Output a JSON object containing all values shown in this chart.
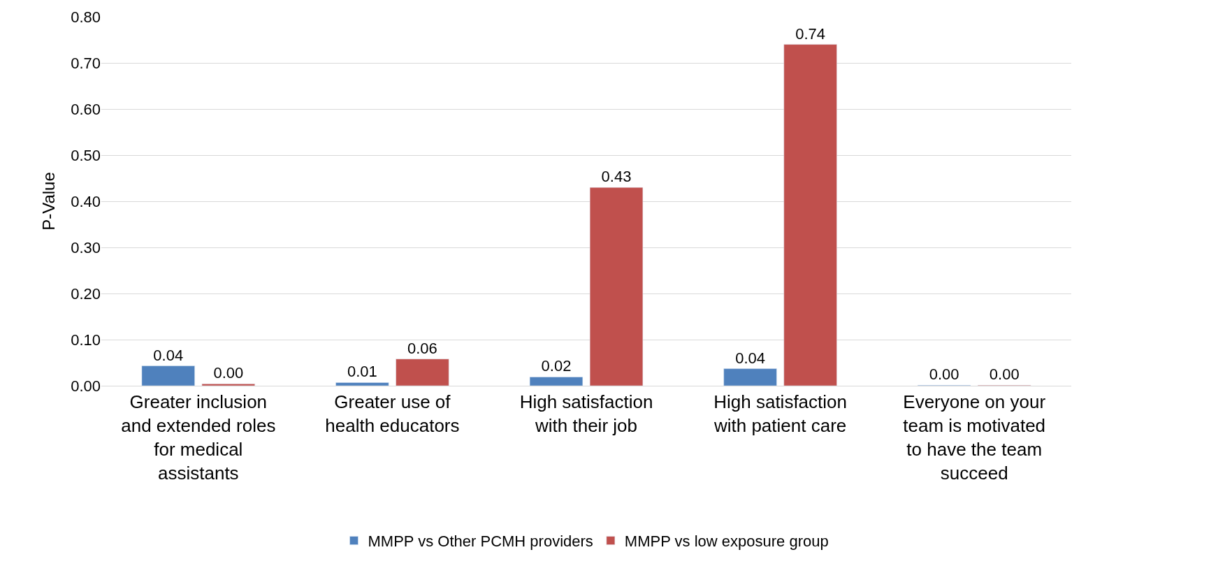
{
  "chart_data": {
    "type": "bar",
    "ylabel": "P-Value",
    "categories": [
      "Greater inclusion and extended roles for medical assistants",
      "Greater use of health educators",
      "High satisfaction with their job",
      "High satisfaction with patient care",
      "Everyone on your team is motivated to have the team succeed"
    ],
    "series": [
      {
        "name": "MMPP vs Other PCMH providers",
        "color": "#4f81bd",
        "values": [
          0.043,
          0.007,
          0.019,
          0.037,
          0.001
        ],
        "value_labels": [
          "0.04",
          "0.01",
          "0.02",
          "0.04",
          "0.00"
        ]
      },
      {
        "name": "MMPP vs low exposure group",
        "color": "#c0504d",
        "values": [
          0.004,
          0.058,
          0.43,
          0.74,
          0.001
        ],
        "value_labels": [
          "0.00",
          "0.06",
          "0.43",
          "0.74",
          "0.00"
        ]
      }
    ],
    "ylim": [
      0,
      0.8
    ],
    "yticks": [
      {
        "value": 0,
        "label": "0.00"
      },
      {
        "value": 0.1,
        "label": "0.10"
      },
      {
        "value": 0.2,
        "label": "0.20"
      },
      {
        "value": 0.3,
        "label": "0.30"
      },
      {
        "value": 0.4,
        "label": "0.40"
      },
      {
        "value": 0.5,
        "label": "0.50"
      },
      {
        "value": 0.6,
        "label": "0.60"
      },
      {
        "value": 0.7,
        "label": "0.70"
      },
      {
        "value": 0.8,
        "label": "0.80"
      }
    ],
    "grid": "y",
    "legend": "bottom"
  }
}
